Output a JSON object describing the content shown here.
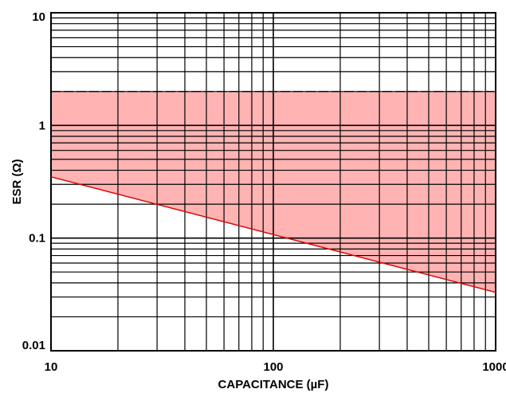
{
  "chart_data": {
    "type": "area",
    "xlabel": "CAPACITANCE (µF)",
    "ylabel": "ESR (Ω)",
    "xscale": "log",
    "yscale": "log",
    "xlim": [
      10,
      1000
    ],
    "ylim": [
      0.01,
      10
    ],
    "grid": true,
    "x_ticks": [
      {
        "value": 10,
        "label": "10"
      },
      {
        "value": 100,
        "label": "100"
      },
      {
        "value": 1000,
        "label": "1000"
      }
    ],
    "y_ticks": [
      {
        "value": 10,
        "label": "10"
      },
      {
        "value": 1,
        "label": "1"
      },
      {
        "value": 0.1,
        "label": "0.1"
      },
      {
        "value": 0.01,
        "label": "0.01"
      }
    ],
    "region": {
      "upper_bound_esr": 2.0,
      "lower_bound": {
        "x": [
          10,
          1000
        ],
        "y": [
          0.35,
          0.033
        ]
      },
      "fill_color": "#ffb3b3",
      "upper_line_color": "#000000",
      "lower_line_color": "#e00000"
    }
  }
}
